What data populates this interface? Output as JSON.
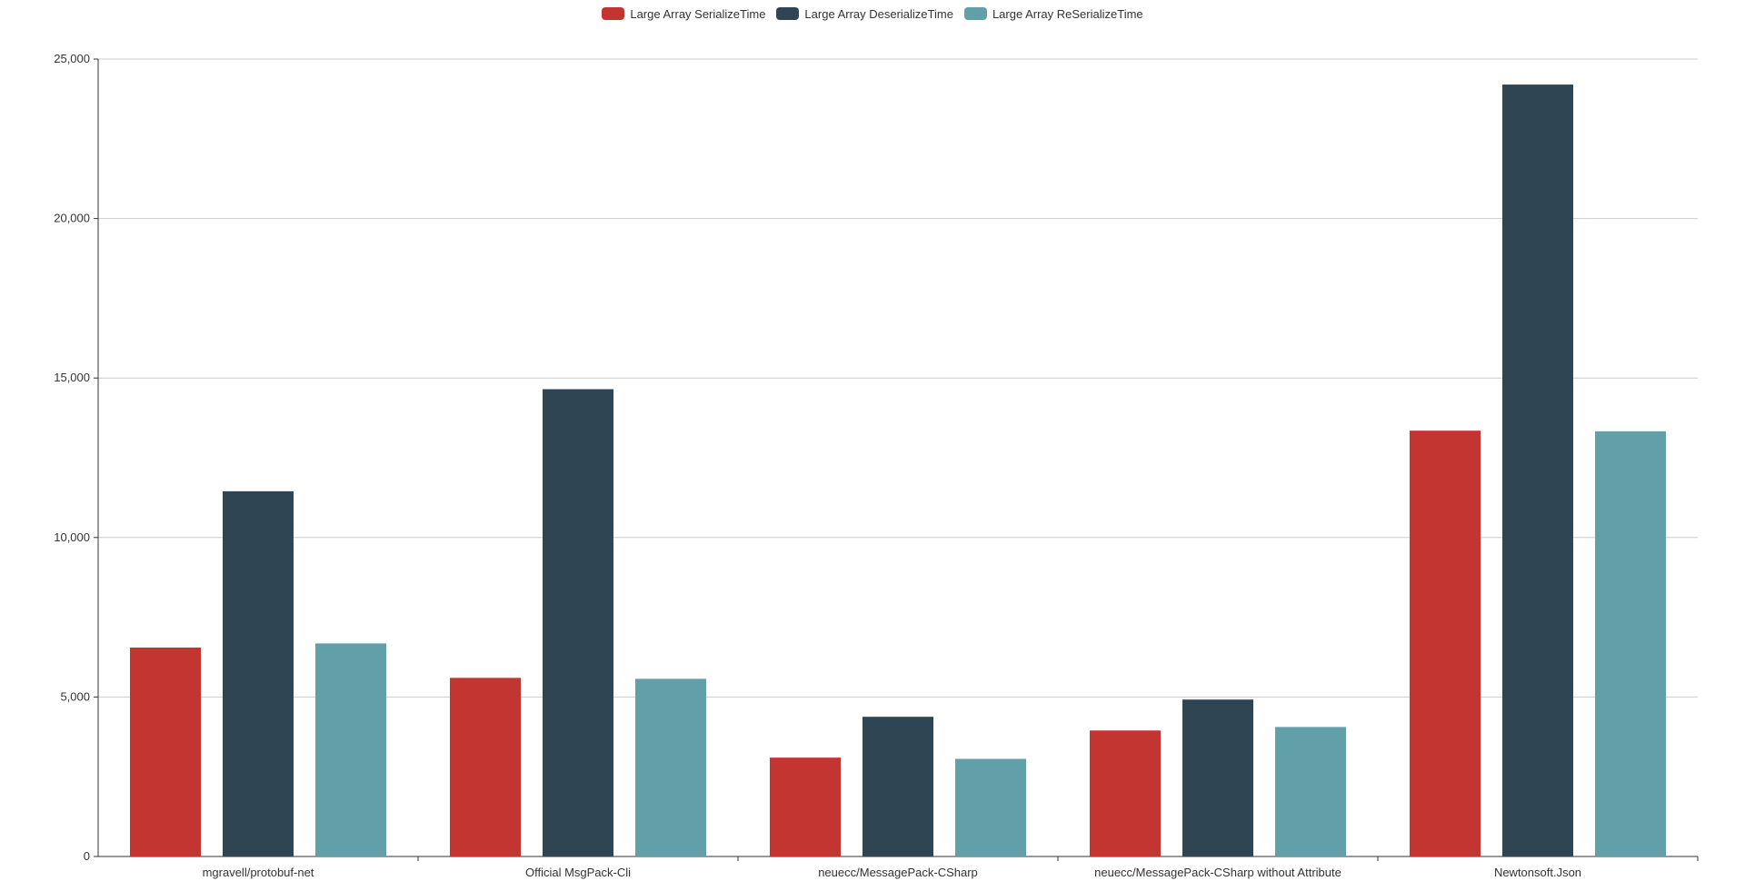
{
  "colors": {
    "background": "#ffffff",
    "axis": "#333333",
    "grid": "#cccccc",
    "text": "#333333"
  },
  "legend": {
    "position": "top-center",
    "items": [
      {
        "label": "Large Array SerializeTime",
        "color": "#c23531"
      },
      {
        "label": "Large Array DeserializeTime",
        "color": "#2f4554"
      },
      {
        "label": "Large Array ReSerializeTime",
        "color": "#61a0a8"
      }
    ]
  },
  "chart_data": {
    "type": "bar",
    "categories": [
      "mgravell/protobuf-net",
      "Official MsgPack-Cli",
      "neuecc/MessagePack-CSharp",
      "neuecc/MessagePack-CSharp without Attribute",
      "Newtonsoft.Json"
    ],
    "series": [
      {
        "name": "Large Array SerializeTime",
        "color": "#c23531",
        "values": [
          6550,
          5600,
          3100,
          3950,
          13350
        ]
      },
      {
        "name": "Large Array DeserializeTime",
        "color": "#2f4554",
        "values": [
          11450,
          14650,
          4380,
          4920,
          24200
        ]
      },
      {
        "name": "Large Array ReSerializeTime",
        "color": "#61a0a8",
        "values": [
          6680,
          5570,
          3060,
          4060,
          13330
        ]
      }
    ],
    "ylim": [
      0,
      25000
    ],
    "yticks": [
      "0",
      "5,000",
      "10,000",
      "15,000",
      "20,000",
      "25,000"
    ],
    "ytick_values": [
      0,
      5000,
      10000,
      15000,
      20000,
      25000
    ],
    "grid": true,
    "title": "",
    "xlabel": "",
    "ylabel": ""
  }
}
